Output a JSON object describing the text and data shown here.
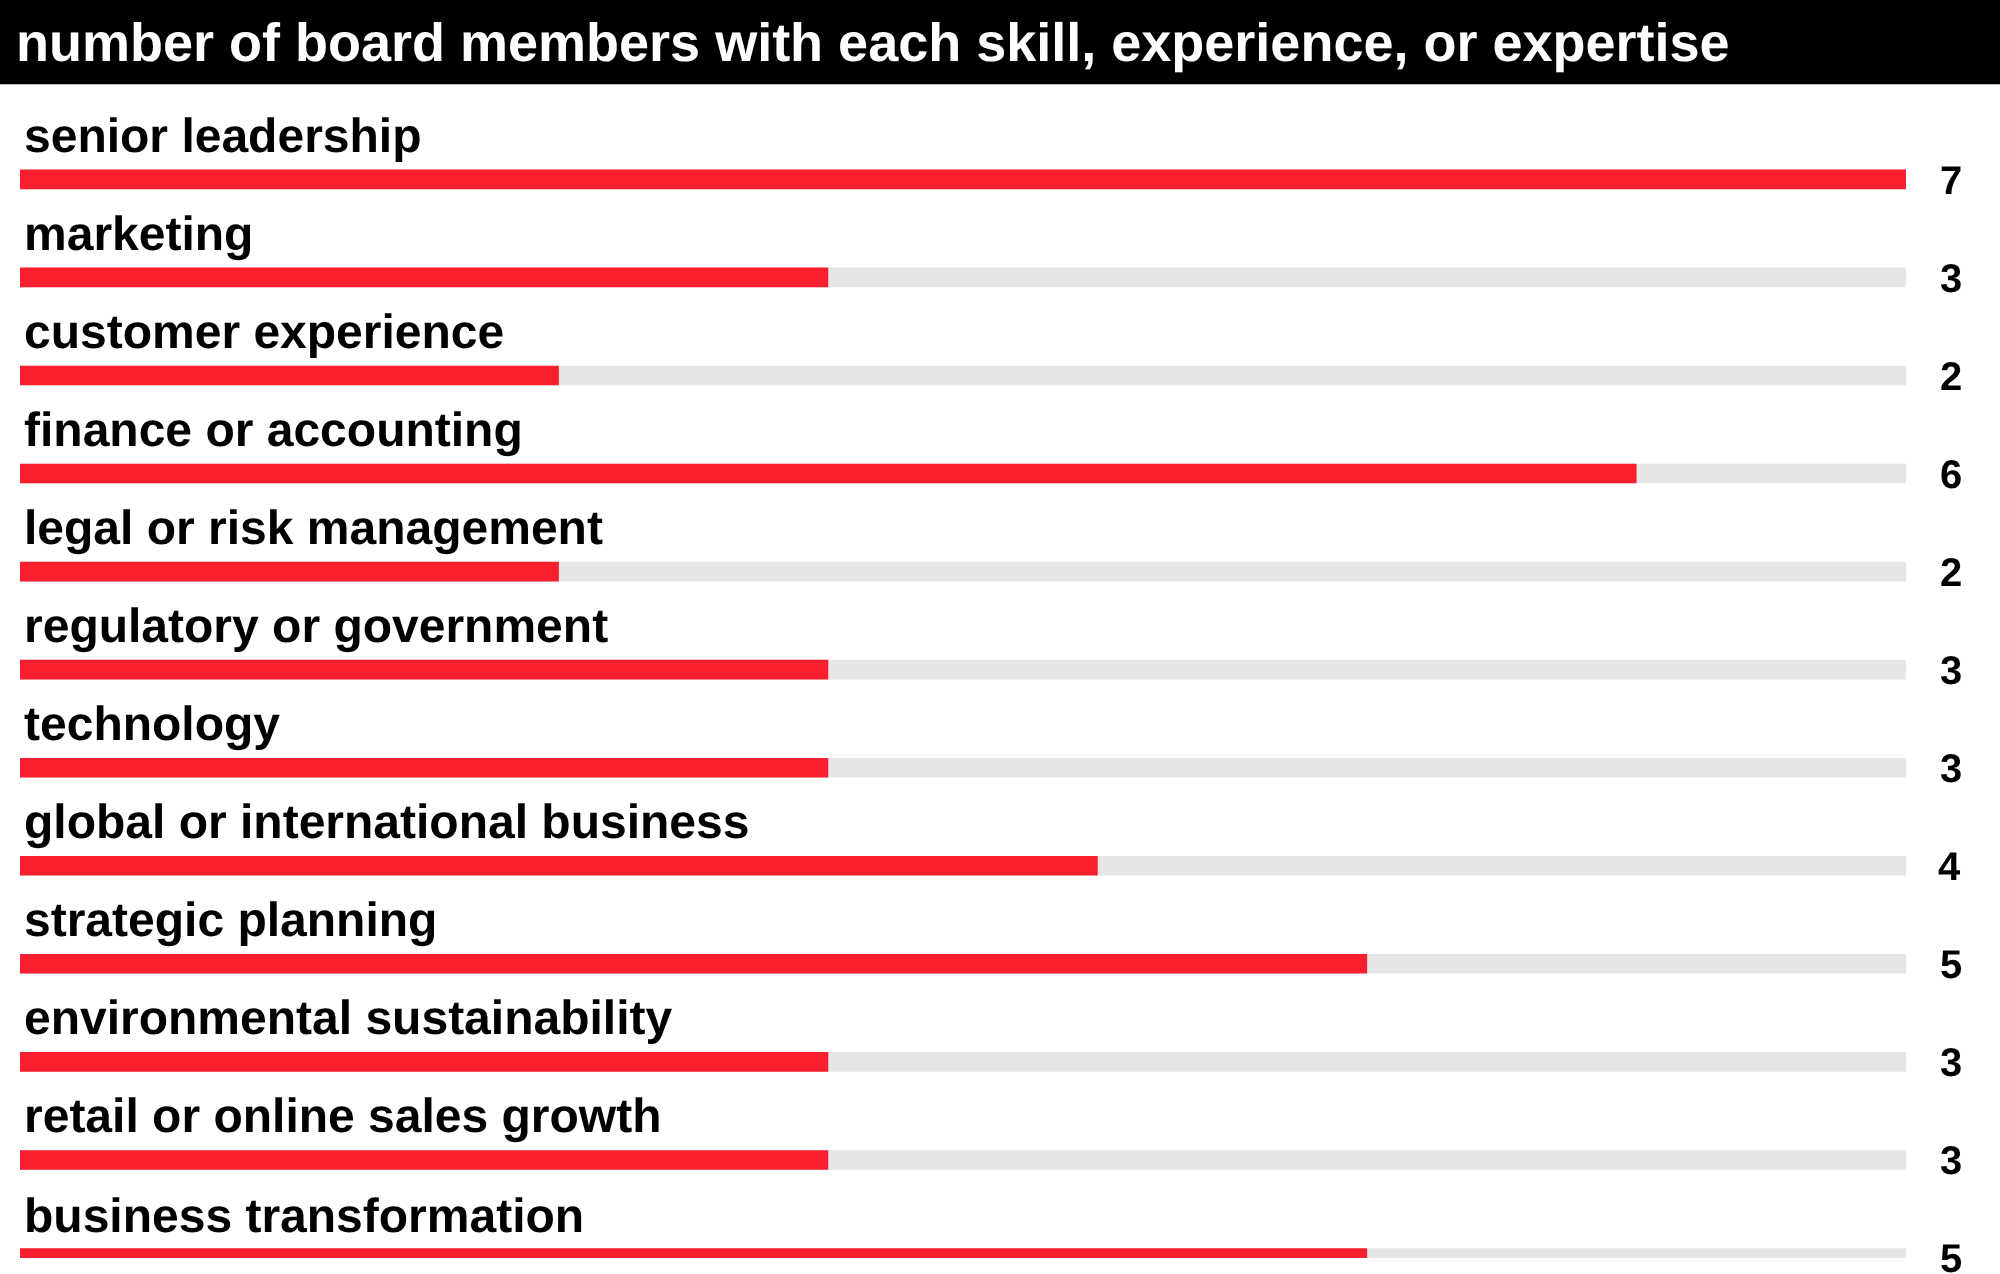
{
  "chart_data": {
    "type": "bar",
    "orientation": "horizontal",
    "title": "number of board members with each skill, experience, or expertise",
    "categories": [
      "senior leadership",
      "marketing",
      "customer experience",
      "finance or accounting",
      "legal or risk management",
      "regulatory or government",
      "technology",
      "global or international business",
      "strategic planning",
      "environmental sustainability",
      "retail or online sales growth",
      "business transformation"
    ],
    "values": [
      7,
      3,
      2,
      6,
      2,
      3,
      3,
      4,
      5,
      3,
      3,
      5
    ],
    "color": "#fa1f2e",
    "xlim": [
      0,
      7
    ],
    "data_labels": true,
    "tick_labels": false,
    "grid": false,
    "legend": false
  }
}
